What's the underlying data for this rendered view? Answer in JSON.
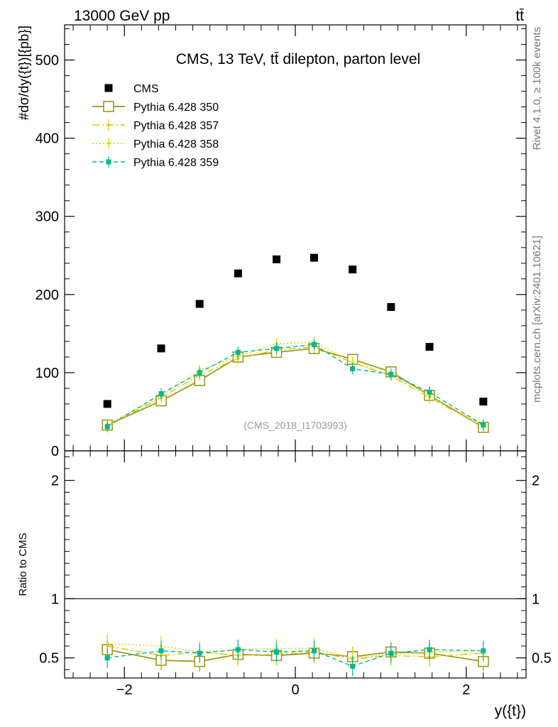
{
  "header": {
    "left": "13000 GeV pp",
    "right": "tt̄"
  },
  "side_labels": {
    "rivet": "Rivet 4.1.0, ≥ 100k events",
    "mcplots": "mcplots.cern.ch [arXiv:2401.10621]"
  },
  "chart_data": {
    "type": "scatter",
    "title": "CMS, 13 TeV, tt̄ dilepton, parton level",
    "watermark": "(CMS_2018_I1703993)",
    "xlabel": "y({t})",
    "ylabel": "#dσ/dy({t})[{pb}]",
    "ratio_ylabel": "Ratio to CMS",
    "xlim": [
      -2.7,
      2.7
    ],
    "ylim": [
      0,
      545
    ],
    "ratio_ylim": [
      0.33,
      2.25
    ],
    "x_ticks": [
      -2,
      0,
      2
    ],
    "x_tick_labels": [
      "−2",
      "0",
      "2"
    ],
    "y_ticks": [
      0,
      100,
      200,
      300,
      400,
      500
    ],
    "y_tick_labels": [
      "0",
      "100",
      "200",
      "300",
      "400",
      "500"
    ],
    "ratio_ticks": [
      0.5,
      1,
      2
    ],
    "ratio_tick_labels": [
      "0.5",
      "1",
      "2"
    ],
    "x": [
      -2.2,
      -1.57,
      -1.12,
      -0.67,
      -0.22,
      0.22,
      0.67,
      1.12,
      1.57,
      2.2
    ],
    "data": {
      "name": "CMS",
      "color": "#000000",
      "values": [
        60,
        131,
        188,
        227,
        245,
        247,
        232,
        184,
        133,
        63
      ]
    },
    "series": [
      {
        "name": "Pythia 6.428 350",
        "color": "#9a9a1e",
        "values": [
          33,
          64,
          90,
          120,
          126,
          131,
          117,
          101,
          71,
          30
        ],
        "ratio": [
          0.57,
          0.48,
          0.47,
          0.53,
          0.52,
          0.54,
          0.51,
          0.55,
          0.54,
          0.47
        ]
      },
      {
        "name": "Pythia 6.428 357",
        "color": "#e6c000",
        "values": [
          32,
          68,
          97,
          118,
          129,
          133,
          113,
          96,
          68,
          31
        ],
        "ratio": [
          0.6,
          0.52,
          0.55,
          0.52,
          0.53,
          0.55,
          0.49,
          0.52,
          0.51,
          0.54
        ]
      },
      {
        "name": "Pythia 6.428 358",
        "color": "#d4d400",
        "values": [
          34,
          70,
          103,
          121,
          137,
          139,
          113,
          98,
          71,
          32
        ],
        "ratio": [
          0.62,
          0.6,
          0.55,
          0.57,
          0.58,
          0.58,
          0.5,
          0.53,
          0.55,
          0.56
        ]
      },
      {
        "name": "Pythia 6.428 359",
        "color": "#00b890",
        "values": [
          31,
          73,
          100,
          126,
          131,
          136,
          105,
          98,
          75,
          33
        ],
        "ratio": [
          0.5,
          0.56,
          0.54,
          0.57,
          0.55,
          0.56,
          0.43,
          0.54,
          0.57,
          0.56
        ]
      }
    ]
  }
}
